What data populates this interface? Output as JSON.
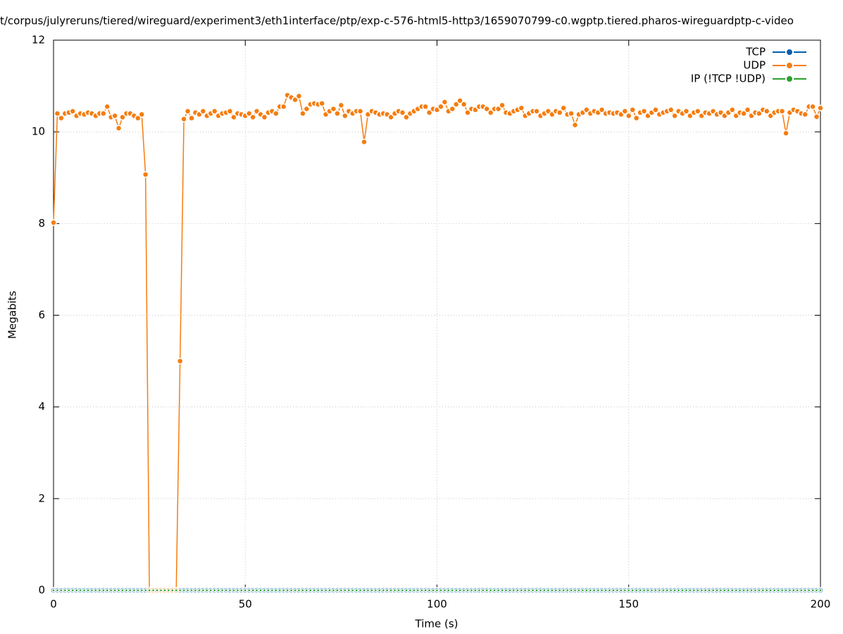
{
  "chart_data": {
    "type": "line",
    "title": "t/corpus/julyreruns/tiered/wireguard/experiment3/eth1interface/ptp/exp-c-576-html5-http3/1659070799-c0.wgptp.tiered.pharos-wireguardptp-c-video",
    "xlabel": "Time (s)",
    "ylabel": "Megabits",
    "xlim": [
      0,
      200
    ],
    "ylim": [
      0,
      12
    ],
    "xticks": [
      0,
      50,
      100,
      150,
      200
    ],
    "yticks": [
      0,
      2,
      4,
      6,
      8,
      10,
      12
    ],
    "grid": true,
    "legend": "top-right",
    "x": [
      0,
      1,
      2,
      3,
      4,
      5,
      6,
      7,
      8,
      9,
      10,
      11,
      12,
      13,
      14,
      15,
      16,
      17,
      18,
      19,
      20,
      21,
      22,
      23,
      24,
      25,
      26,
      27,
      28,
      29,
      30,
      31,
      32,
      33,
      34,
      35,
      36,
      37,
      38,
      39,
      40,
      41,
      42,
      43,
      44,
      45,
      46,
      47,
      48,
      49,
      50,
      51,
      52,
      53,
      54,
      55,
      56,
      57,
      58,
      59,
      60,
      61,
      62,
      63,
      64,
      65,
      66,
      67,
      68,
      69,
      70,
      71,
      72,
      73,
      74,
      75,
      76,
      77,
      78,
      79,
      80,
      81,
      82,
      83,
      84,
      85,
      86,
      87,
      88,
      89,
      90,
      91,
      92,
      93,
      94,
      95,
      96,
      97,
      98,
      99,
      100,
      101,
      102,
      103,
      104,
      105,
      106,
      107,
      108,
      109,
      110,
      111,
      112,
      113,
      114,
      115,
      116,
      117,
      118,
      119,
      120,
      121,
      122,
      123,
      124,
      125,
      126,
      127,
      128,
      129,
      130,
      131,
      132,
      133,
      134,
      135,
      136,
      137,
      138,
      139,
      140,
      141,
      142,
      143,
      144,
      145,
      146,
      147,
      148,
      149,
      150,
      151,
      152,
      153,
      154,
      155,
      156,
      157,
      158,
      159,
      160,
      161,
      162,
      163,
      164,
      165,
      166,
      167,
      168,
      169,
      170,
      171,
      172,
      173,
      174,
      175,
      176,
      177,
      178,
      179,
      180,
      181,
      182,
      183,
      184,
      185,
      186,
      187,
      188,
      189,
      190,
      191,
      192,
      193,
      194,
      195,
      196,
      197,
      198,
      199,
      200
    ],
    "series": [
      {
        "name": "TCP",
        "color": "#0060ad",
        "values": [
          0,
          0,
          0,
          0,
          0,
          0,
          0,
          0,
          0,
          0,
          0,
          0,
          0,
          0,
          0,
          0,
          0,
          0,
          0,
          0,
          0,
          0,
          0,
          0,
          0,
          0,
          0,
          0,
          0,
          0,
          0,
          0,
          0,
          0,
          0,
          0,
          0,
          0,
          0,
          0,
          0,
          0,
          0,
          0,
          0,
          0,
          0,
          0,
          0,
          0,
          0,
          0,
          0,
          0,
          0,
          0,
          0,
          0,
          0,
          0,
          0,
          0,
          0,
          0,
          0,
          0,
          0,
          0,
          0,
          0,
          0,
          0,
          0,
          0,
          0,
          0,
          0,
          0,
          0,
          0,
          0,
          0,
          0,
          0,
          0,
          0,
          0,
          0,
          0,
          0,
          0,
          0,
          0,
          0,
          0,
          0,
          0,
          0,
          0,
          0,
          0,
          0,
          0,
          0,
          0,
          0,
          0,
          0,
          0,
          0,
          0,
          0,
          0,
          0,
          0,
          0,
          0,
          0,
          0,
          0,
          0,
          0,
          0,
          0,
          0,
          0,
          0,
          0,
          0,
          0,
          0,
          0,
          0,
          0,
          0,
          0,
          0,
          0,
          0,
          0,
          0,
          0,
          0,
          0,
          0,
          0,
          0,
          0,
          0,
          0,
          0,
          0,
          0,
          0,
          0,
          0,
          0,
          0,
          0,
          0,
          0,
          0,
          0,
          0,
          0,
          0,
          0,
          0,
          0,
          0,
          0,
          0,
          0,
          0,
          0,
          0,
          0,
          0,
          0,
          0,
          0,
          0,
          0,
          0,
          0,
          0,
          0,
          0,
          0,
          0,
          0,
          0,
          0,
          0,
          0,
          0,
          0,
          0,
          0,
          0,
          0
        ]
      },
      {
        "name": "UDP",
        "color": "#f57d0f",
        "values": [
          8.02,
          10.4,
          10.3,
          10.4,
          10.42,
          10.45,
          10.35,
          10.4,
          10.38,
          10.42,
          10.4,
          10.35,
          10.4,
          10.4,
          10.55,
          10.32,
          10.35,
          10.08,
          10.32,
          10.4,
          10.4,
          10.35,
          10.3,
          10.38,
          9.07,
          0,
          0,
          0,
          0,
          0,
          0,
          0,
          0,
          5.0,
          10.28,
          10.45,
          10.3,
          10.42,
          10.38,
          10.45,
          10.35,
          10.4,
          10.45,
          10.35,
          10.4,
          10.42,
          10.45,
          10.32,
          10.4,
          10.38,
          10.35,
          10.4,
          10.32,
          10.45,
          10.38,
          10.32,
          10.42,
          10.45,
          10.4,
          10.55,
          10.55,
          10.8,
          10.75,
          10.7,
          10.78,
          10.4,
          10.5,
          10.6,
          10.62,
          10.6,
          10.62,
          10.38,
          10.45,
          10.5,
          10.4,
          10.58,
          10.35,
          10.45,
          10.4,
          10.45,
          10.45,
          9.78,
          10.38,
          10.45,
          10.42,
          10.38,
          10.4,
          10.38,
          10.32,
          10.4,
          10.45,
          10.42,
          10.32,
          10.4,
          10.45,
          10.5,
          10.55,
          10.55,
          10.42,
          10.5,
          10.48,
          10.55,
          10.65,
          10.45,
          10.5,
          10.6,
          10.68,
          10.6,
          10.42,
          10.5,
          10.48,
          10.55,
          10.55,
          10.5,
          10.42,
          10.5,
          10.5,
          10.58,
          10.42,
          10.4,
          10.45,
          10.48,
          10.52,
          10.35,
          10.4,
          10.45,
          10.45,
          10.35,
          10.4,
          10.45,
          10.38,
          10.45,
          10.42,
          10.52,
          10.38,
          10.4,
          10.15,
          10.38,
          10.42,
          10.48,
          10.4,
          10.45,
          10.42,
          10.48,
          10.4,
          10.42,
          10.4,
          10.42,
          10.38,
          10.45,
          10.35,
          10.48,
          10.3,
          10.42,
          10.45,
          10.35,
          10.42,
          10.48,
          10.38,
          10.42,
          10.45,
          10.48,
          10.35,
          10.45,
          10.4,
          10.45,
          10.35,
          10.42,
          10.45,
          10.35,
          10.42,
          10.4,
          10.45,
          10.38,
          10.42,
          10.35,
          10.42,
          10.48,
          10.35,
          10.42,
          10.4,
          10.48,
          10.35,
          10.42,
          10.4,
          10.48,
          10.45,
          10.35,
          10.42,
          10.45,
          10.45,
          9.97,
          10.42,
          10.48,
          10.45,
          10.4,
          10.38,
          10.55,
          10.55,
          10.33,
          10.52
        ]
      },
      {
        "name": "IP (!TCP  !UDP)",
        "color": "#2ca02c",
        "values": [
          0,
          0,
          0,
          0,
          0,
          0,
          0,
          0,
          0,
          0,
          0,
          0,
          0,
          0,
          0,
          0,
          0,
          0,
          0,
          0,
          0,
          0,
          0,
          0,
          0,
          0,
          0,
          0,
          0,
          0,
          0,
          0,
          0,
          0,
          0,
          0,
          0,
          0,
          0,
          0,
          0,
          0,
          0,
          0,
          0,
          0,
          0,
          0,
          0,
          0,
          0,
          0,
          0,
          0,
          0,
          0,
          0,
          0,
          0,
          0,
          0,
          0,
          0,
          0,
          0,
          0,
          0,
          0,
          0,
          0,
          0,
          0,
          0,
          0,
          0,
          0,
          0,
          0,
          0,
          0,
          0,
          0,
          0,
          0,
          0,
          0,
          0,
          0,
          0,
          0,
          0,
          0,
          0,
          0,
          0,
          0,
          0,
          0,
          0,
          0,
          0,
          0,
          0,
          0,
          0,
          0,
          0,
          0,
          0,
          0,
          0,
          0,
          0,
          0,
          0,
          0,
          0,
          0,
          0,
          0,
          0,
          0,
          0,
          0,
          0,
          0,
          0,
          0,
          0,
          0,
          0,
          0,
          0,
          0,
          0,
          0,
          0,
          0,
          0,
          0,
          0,
          0,
          0,
          0,
          0,
          0,
          0,
          0,
          0,
          0,
          0,
          0,
          0,
          0,
          0,
          0,
          0,
          0,
          0,
          0,
          0,
          0,
          0,
          0,
          0,
          0,
          0,
          0,
          0,
          0,
          0,
          0,
          0,
          0,
          0,
          0,
          0,
          0,
          0,
          0,
          0,
          0,
          0,
          0,
          0,
          0,
          0,
          0,
          0,
          0,
          0,
          0,
          0,
          0,
          0,
          0,
          0,
          0,
          0,
          0,
          0
        ]
      }
    ]
  }
}
